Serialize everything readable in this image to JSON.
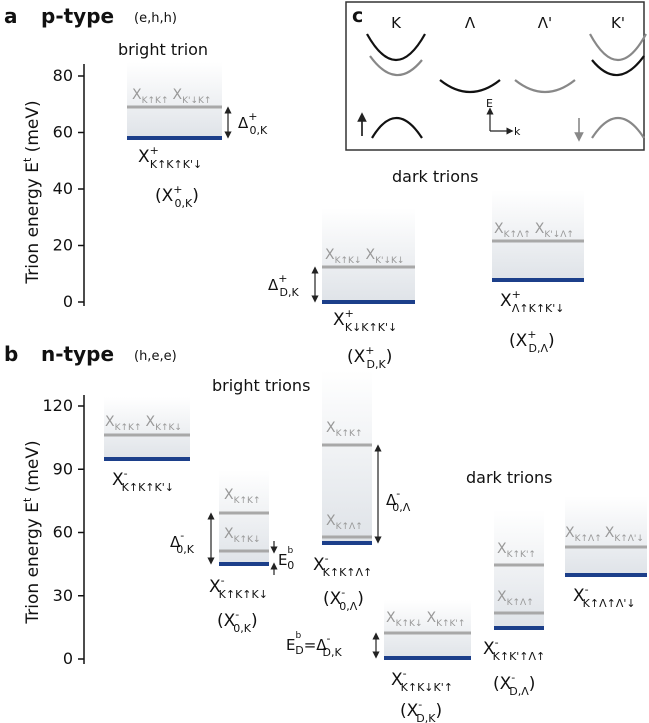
{
  "panel_a": {
    "letter": "a",
    "heading": "p-type",
    "config": "(e,h,h)",
    "axis_label": "Trion energy E",
    "axis_label_sup": "t",
    "axis_unit": " (meV)",
    "ticks": [
      0,
      20,
      40,
      60,
      80
    ],
    "bright_label": "bright trion",
    "dark_label": "dark trions",
    "t1_gray": "X",
    "t1_gray_sub": "K↑K↑",
    "t1_gray2": "X",
    "t1_gray2_sub": "K'↓K↑",
    "t1_name": "X",
    "t1_name_sup": "+",
    "t1_name_sub": "K↑K↑K'↓",
    "t1_alias_open": "(X",
    "t1_alias_sup": "+",
    "t1_alias_sub": "0,K",
    "t1_alias_close": ")",
    "t1_delta": "Δ",
    "t1_delta_sup": "+",
    "t1_delta_sub": "0,K",
    "t2_gray": "X",
    "t2_gray_sub": "K↑K↓",
    "t2_gray2": "X",
    "t2_gray2_sub": "K'↓K↓",
    "t2_name": "X",
    "t2_name_sup": "+",
    "t2_name_sub": "K↓K↑K'↓",
    "t2_alias_open": "(X",
    "t2_alias_sup": "+",
    "t2_alias_sub": "D,K",
    "t2_alias_close": ")",
    "t2_delta": "Δ",
    "t2_delta_sup": "+",
    "t2_delta_sub": "D,K",
    "t3_gray": "X",
    "t3_gray_sub": "K↑Λ↑",
    "t3_gray2": "X",
    "t3_gray2_sub": "K'↓Λ↑",
    "t3_name": "X",
    "t3_name_sup": "+",
    "t3_name_sub": "Λ↑K↑K'↓",
    "t3_alias_open": "(X",
    "t3_alias_sup": "+",
    "t3_alias_sub": "D,Λ",
    "t3_alias_close": ")"
  },
  "panel_b": {
    "letter": "b",
    "heading": "n-type",
    "config": "(h,e,e)",
    "axis_label": "Trion energy E",
    "axis_label_sup": "t",
    "axis_unit": " (meV)",
    "ticks": [
      0,
      30,
      60,
      90,
      120
    ],
    "bright_label": "bright trions",
    "dark_label": "dark trions",
    "t1_gray": "X",
    "t1_gray_sub": "K↑K↑",
    "t1_gray2": "X",
    "t1_gray2_sub": "K↑K↓",
    "t1_name": "X",
    "t1_name_sup": "-",
    "t1_name_sub": "K↑K↑K'↓",
    "t2_gray_a": "X",
    "t2_gray_a_sub": "K↑K↑",
    "t2_gray_b": "X",
    "t2_gray_b_sub": "K↑K↓",
    "t2_name": "X",
    "t2_name_sup": "-",
    "t2_name_sub": "K↑K↑K↓",
    "t2_alias_open": "(X",
    "t2_alias_sup": "-",
    "t2_alias_sub": "0,K",
    "t2_alias_close": ")",
    "t2_delta": "Δ",
    "t2_delta_sup": "-",
    "t2_delta_sub": "0,K",
    "t2_e0": "E",
    "t2_e0_sup": "b",
    "t2_e0_sub": "0",
    "t3_gray_a": "X",
    "t3_gray_a_sub": "K↑K↑",
    "t3_gray_b": "X",
    "t3_gray_b_sub": "K↑Λ↑",
    "t3_name": "X",
    "t3_name_sup": "-",
    "t3_name_sub": "K↑K↑Λ↑",
    "t3_alias_open": "(X",
    "t3_alias_sup": "-",
    "t3_alias_sub": "0,Λ",
    "t3_alias_close": ")",
    "t3_delta": "Δ",
    "t3_delta_sup": "-",
    "t3_delta_sub": "0,Λ",
    "t4_gray": "X",
    "t4_gray_sub": "K↑K↓",
    "t4_gray2": "X",
    "t4_gray2_sub": "K↑K'↑",
    "t4_name": "X",
    "t4_name_sup": "-",
    "t4_name_sub": "K↑K↓K'↑",
    "t4_alias_open": "(X",
    "t4_alias_sup": "-",
    "t4_alias_sub": "D,K",
    "t4_alias_close": ")",
    "t4_ed": "E",
    "t4_ed_sup": "b",
    "t4_ed_sub": "D",
    "t4_eq": "=Δ",
    "t4_eq_sup": "-",
    "t4_eq_sub": "D,K",
    "t5_gray_a": "X",
    "t5_gray_a_sub": "K↑K'↑",
    "t5_gray_b": "X",
    "t5_gray_b_sub": "K↑Λ↑",
    "t5_name": "X",
    "t5_name_sup": "-",
    "t5_name_sub": "K↑K'↑Λ↑",
    "t5_alias_open": "(X",
    "t5_alias_sup": "-",
    "t5_alias_sub": "D,Λ",
    "t5_alias_close": ")",
    "t6_gray": "X",
    "t6_gray_sub": "K↑Λ↑",
    "t6_gray2": "X",
    "t6_gray2_sub": "K↑Λ'↓",
    "t6_name": "X",
    "t6_name_sup": "-",
    "t6_name_sub": "K↑Λ↑Λ'↓"
  },
  "panel_c": {
    "letter": "c",
    "valleys": [
      "K",
      "Λ",
      "Λ'",
      "K'"
    ],
    "axis_e": "E",
    "axis_k": "k"
  },
  "colors": {
    "ground_level": "#1c3f8a",
    "excited_level": "#a8a8a8",
    "text": "#111111",
    "gray_text": "#9a9a9a"
  }
}
